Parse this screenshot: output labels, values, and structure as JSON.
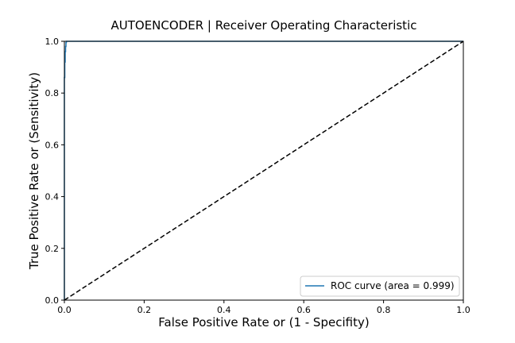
{
  "chart_data": {
    "type": "line",
    "title": "AUTOENCODER | Receiver Operating Characteristic",
    "xlabel": "False Positive Rate or (1 - Specifity)",
    "ylabel": "True Positive Rate or (Sensitivity)",
    "xlim": [
      0.0,
      1.0
    ],
    "ylim": [
      0.0,
      1.0
    ],
    "xticks": [
      "0.0",
      "0.2",
      "0.4",
      "0.6",
      "0.8",
      "1.0"
    ],
    "yticks": [
      "0.0",
      "0.2",
      "0.4",
      "0.6",
      "0.8",
      "1.0"
    ],
    "grid": false,
    "legend_position": "lower-right",
    "series": [
      {
        "name": "ROC curve (area = 0.999)",
        "color": "#1f77b4",
        "style": "solid",
        "x": [
          0.0,
          0.0,
          0.0,
          0.001,
          0.001,
          0.002,
          0.002,
          0.003,
          0.003,
          0.004,
          0.004,
          0.005,
          0.005,
          1.0
        ],
        "y": [
          0.0,
          0.72,
          0.86,
          0.86,
          0.92,
          0.92,
          0.96,
          0.96,
          0.98,
          0.98,
          0.995,
          0.995,
          1.0,
          1.0
        ]
      },
      {
        "name": "",
        "color": "#000000",
        "style": "dashed",
        "x": [
          0.0,
          1.0
        ],
        "y": [
          0.0,
          1.0
        ]
      }
    ]
  }
}
